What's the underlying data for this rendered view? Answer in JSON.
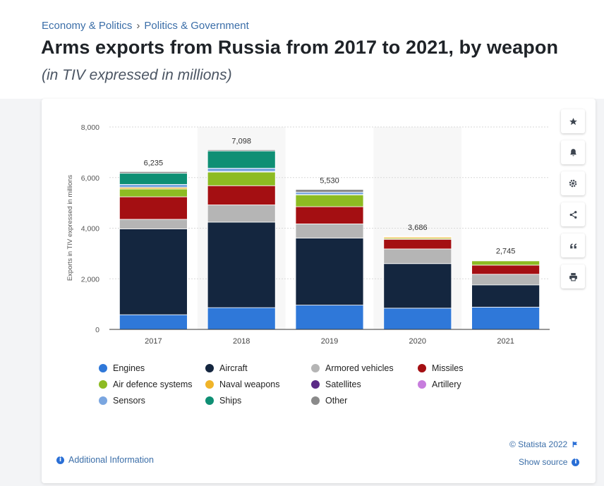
{
  "breadcrumb": {
    "item1": "Economy & Politics",
    "separator": "›",
    "item2": "Politics & Government"
  },
  "title": "Arms exports from Russia from 2017 to 2021, by weapon",
  "subtitle": "(in TIV expressed in millions)",
  "tools": {
    "icons": [
      "star-icon",
      "bell-icon",
      "gear-icon",
      "share-icon",
      "quote-icon",
      "print-icon"
    ]
  },
  "footer": {
    "additional_info": "Additional Information",
    "copyright": "© Statista 2022",
    "show_source": "Show source"
  },
  "colors": {
    "Engines": "#2f78d9",
    "Aircraft": "#14263f",
    "Armored vehicles": "#b5b5b5",
    "Missiles": "#a40f12",
    "Air defence systems": "#8dbb22",
    "Naval weapons": "#f0b429",
    "Satellites": "#5b2a86",
    "Artillery": "#c77ddd",
    "Sensors": "#7aa6e0",
    "Ships": "#0f8f74",
    "Other": "#8a8a8a"
  },
  "chart_data": {
    "type": "bar",
    "stacked": true,
    "categories": [
      "2017",
      "2018",
      "2019",
      "2020",
      "2021"
    ],
    "ylabel": "Exports in TIV expressed in millions",
    "ylim": [
      0,
      8000
    ],
    "yticks": [
      "0",
      "2,000",
      "4,000",
      "6,000",
      "8,000"
    ],
    "totals": [
      6235,
      7098,
      5530,
      3686,
      2745
    ],
    "total_labels": [
      "6,235",
      "7,098",
      "5,530",
      "3,686",
      "2,745"
    ],
    "grid": true,
    "legend_position": "bottom",
    "series": [
      {
        "name": "Engines",
        "values": [
          580,
          860,
          960,
          840,
          880
        ]
      },
      {
        "name": "Aircraft",
        "values": [
          3390,
          3380,
          2650,
          1760,
          880
        ]
      },
      {
        "name": "Armored vehicles",
        "values": [
          380,
          680,
          560,
          580,
          420
        ]
      },
      {
        "name": "Missiles",
        "values": [
          890,
          760,
          680,
          380,
          360
        ]
      },
      {
        "name": "Air defence systems",
        "values": [
          310,
          540,
          470,
          40,
          170
        ]
      },
      {
        "name": "Naval weapons",
        "values": [
          60,
          20,
          10,
          50,
          20
        ]
      },
      {
        "name": "Satellites",
        "values": [
          0,
          0,
          0,
          0,
          0
        ]
      },
      {
        "name": "Artillery",
        "values": [
          0,
          0,
          0,
          0,
          0
        ]
      },
      {
        "name": "Sensors",
        "values": [
          120,
          130,
          90,
          20,
          15
        ]
      },
      {
        "name": "Ships",
        "values": [
          440,
          680,
          0,
          0,
          0
        ]
      },
      {
        "name": "Other",
        "values": [
          65,
          48,
          110,
          16,
          0
        ]
      }
    ]
  }
}
